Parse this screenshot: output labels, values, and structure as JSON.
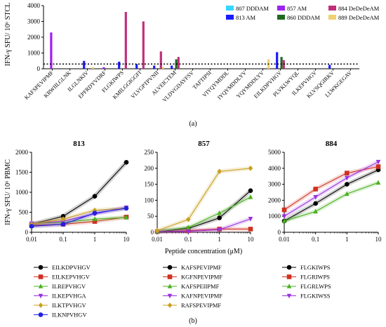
{
  "panel_a": {
    "label": "(a)",
    "ylabel": "IFN-γ SFU/ 10⁶ STCL",
    "legend_items": [
      {
        "id": "807",
        "name": "807 DDDAM",
        "color": "#35d6ff"
      },
      {
        "id": "857",
        "name": "857 AM",
        "color": "#a020f0"
      },
      {
        "id": "884",
        "name": "884 DeDeDeAM",
        "color": "#c0307a"
      },
      {
        "id": "813",
        "name": "813 AM",
        "color": "#1a1aff"
      },
      {
        "id": "860",
        "name": "860 DDDAM",
        "color": "#1e6b1e"
      },
      {
        "id": "889",
        "name": "889 DeDeDeAM",
        "color": "#f0d070"
      }
    ]
  },
  "panel_b": {
    "label": "(b)",
    "ylabel": "IFN-γ SFU/ 10⁶ PBMC",
    "xlabel": "Peptide concentration (μM)"
  },
  "chart_data": [
    {
      "type": "bar",
      "title": "",
      "ylabel": "IFN-γ SFU/ 10⁶ STCL",
      "ylim": [
        0,
        4000
      ],
      "yticks": [
        "0",
        "1000",
        "2000",
        "3000",
        "4000"
      ],
      "threshold_line": 300,
      "categories": [
        "KAFSPEVIPMF",
        "KRWIILGLNK",
        "ILGLNKIV",
        "EPFRDYVDRF",
        "FLGKIWPS",
        "KMILGGIGGFI",
        "VLVGPTPVNII",
        "ALVEICTEM",
        "VLDVGDAYFSV",
        "TAFTIPSI",
        "VIYQYMDDL",
        "IYQYMDDLYV",
        "YQYMDDLYV",
        "EILKDPVHGV",
        "PLVKLWYQL",
        "ILKEPVHGV",
        "KLVSQGIRKV",
        "LLWKGEGAV"
      ],
      "series": [
        {
          "name": "807 DDDAM",
          "values": [
            0,
            0,
            0,
            0,
            0,
            0,
            0,
            0,
            0,
            0,
            0,
            0,
            0,
            0,
            0,
            0,
            0,
            0
          ]
        },
        {
          "name": "813 AM",
          "values": [
            0,
            0,
            500,
            0,
            450,
            300,
            200,
            200,
            0,
            0,
            0,
            0,
            0,
            1050,
            0,
            0,
            250,
            0
          ]
        },
        {
          "name": "857 AM",
          "values": [
            2300,
            0,
            0,
            100,
            0,
            0,
            0,
            0,
            0,
            0,
            0,
            0,
            0,
            0,
            0,
            0,
            0,
            0
          ]
        },
        {
          "name": "860 DDDAM",
          "values": [
            0,
            0,
            0,
            0,
            0,
            0,
            0,
            600,
            0,
            0,
            0,
            0,
            0,
            750,
            0,
            0,
            0,
            0
          ]
        },
        {
          "name": "884 DeDeDeAM",
          "values": [
            0,
            0,
            0,
            0,
            3600,
            3000,
            1100,
            750,
            0,
            0,
            0,
            0,
            0,
            550,
            0,
            0,
            0,
            0
          ]
        },
        {
          "name": "889 DeDeDeAM",
          "values": [
            0,
            0,
            100,
            0,
            0,
            0,
            100,
            0,
            0,
            0,
            0,
            0,
            600,
            0,
            0,
            0,
            0,
            0
          ]
        }
      ]
    },
    {
      "type": "line",
      "title": "813",
      "xscale": "log",
      "x": [
        0.01,
        0.1,
        1,
        10
      ],
      "xticks": [
        "0.01",
        "0.1",
        "1",
        "10"
      ],
      "ylim": [
        0,
        2000
      ],
      "yticks": [
        "0",
        "500",
        "1000",
        "1500",
        "2000"
      ],
      "series": [
        {
          "name": "EILKDPVHGV",
          "color": "#000000",
          "marker": "circle",
          "values": [
            200,
            400,
            900,
            1750
          ]
        },
        {
          "name": "EILKEPVHGV",
          "color": "#d03020",
          "marker": "square",
          "values": [
            170,
            200,
            270,
            380
          ]
        },
        {
          "name": "ILREPVHGV",
          "color": "#4cb020",
          "marker": "triangle",
          "values": [
            220,
            250,
            330,
            370
          ]
        },
        {
          "name": "ILKEPVHGA",
          "color": "#9a30e0",
          "marker": "tri-down",
          "values": [
            220,
            280,
            460,
            620
          ]
        },
        {
          "name": "ILKTPVHGV",
          "color": "#c8a020",
          "marker": "diamond",
          "values": [
            200,
            330,
            550,
            600
          ]
        },
        {
          "name": "ILKNPVHGV",
          "color": "#2020e0",
          "marker": "circle",
          "values": [
            150,
            200,
            480,
            600
          ]
        }
      ]
    },
    {
      "type": "line",
      "title": "857",
      "xscale": "log",
      "x": [
        0.01,
        0.1,
        1,
        10
      ],
      "xticks": [
        "0.01",
        "0.1",
        "1",
        "10"
      ],
      "ylim": [
        0,
        250
      ],
      "yticks": [
        "0",
        "50",
        "100",
        "150",
        "200",
        "250"
      ],
      "series": [
        {
          "name": "KAFSPEVIPMF",
          "color": "#000000",
          "marker": "circle",
          "values": [
            2,
            12,
            45,
            130
          ]
        },
        {
          "name": "KGFNPEVIPMF",
          "color": "#d03020",
          "marker": "square",
          "values": [
            2,
            5,
            10,
            10
          ]
        },
        {
          "name": "KAFSPEIIPMF",
          "color": "#4cb020",
          "marker": "triangle",
          "values": [
            2,
            15,
            60,
            110
          ]
        },
        {
          "name": "KAFNPEVIPMF",
          "color": "#9a30e0",
          "marker": "tri-down",
          "values": [
            2,
            3,
            8,
            42
          ]
        },
        {
          "name": "RAFSPEVIPMF",
          "color": "#c8a020",
          "marker": "diamond",
          "values": [
            5,
            40,
            190,
            200
          ]
        }
      ]
    },
    {
      "type": "line",
      "title": "884",
      "xscale": "log",
      "x": [
        0.01,
        0.1,
        1,
        10
      ],
      "xticks": [
        "0.01",
        "0.1",
        "1",
        "10"
      ],
      "ylim": [
        0,
        5000
      ],
      "yticks": [
        "0",
        "1000",
        "2000",
        "3000",
        "4000",
        "5000"
      ],
      "series": [
        {
          "name": "FLGKIWPS",
          "color": "#000000",
          "marker": "circle",
          "values": [
            700,
            1800,
            3000,
            3900
          ]
        },
        {
          "name": "FLGRIWPS",
          "color": "#d03020",
          "marker": "square",
          "values": [
            1400,
            2700,
            3700,
            4100
          ]
        },
        {
          "name": "FLGRLWPS",
          "color": "#4cb020",
          "marker": "triangle",
          "values": [
            700,
            1300,
            2400,
            3100
          ]
        },
        {
          "name": "FLGKIWSS",
          "color": "#9a30e0",
          "marker": "tri-down",
          "values": [
            1000,
            2200,
            3400,
            4400
          ]
        }
      ]
    }
  ]
}
